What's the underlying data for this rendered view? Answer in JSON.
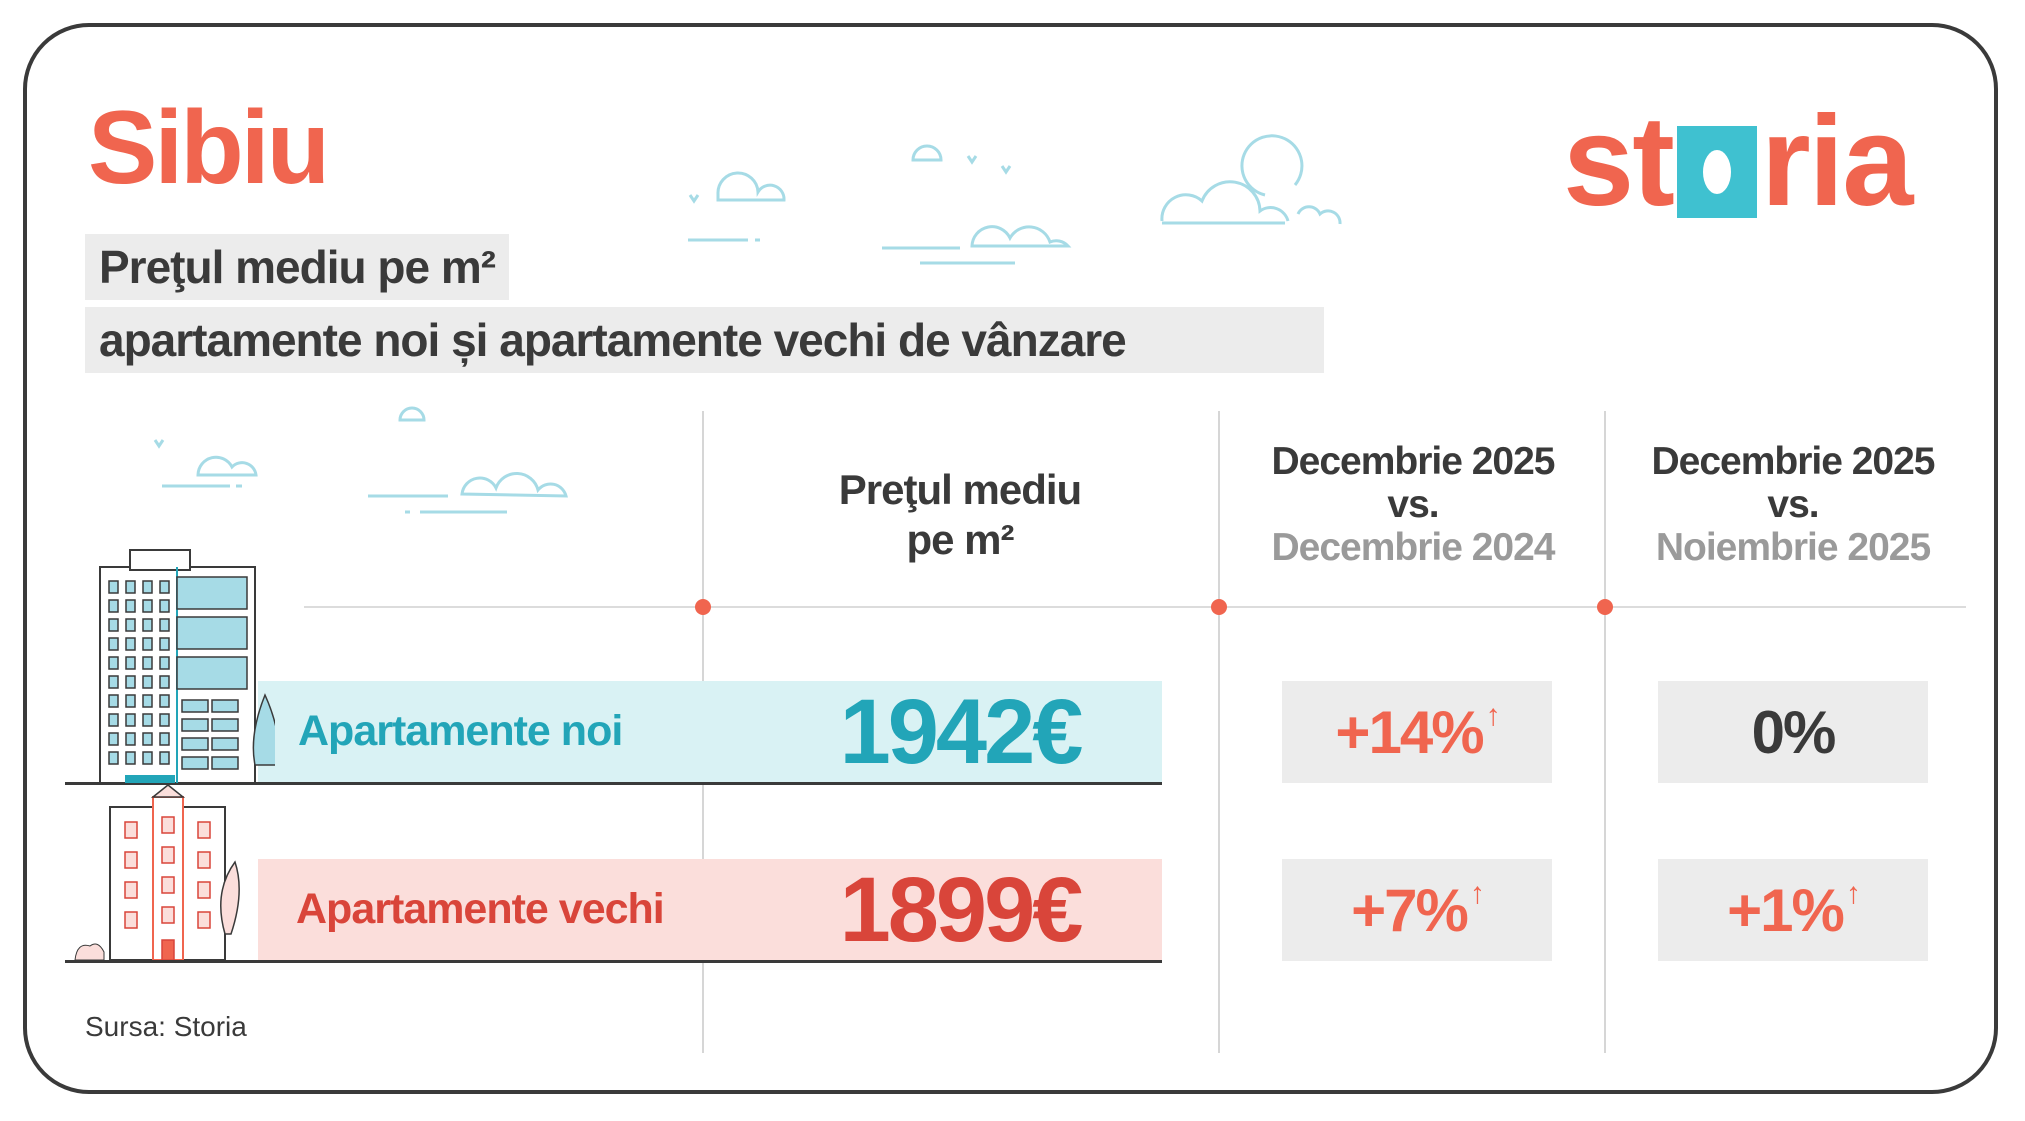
{
  "city": "Sibiu",
  "logo": "storia",
  "subtitle_line1": "Preţul mediu pe m²",
  "subtitle_line2": "apartamente noi și apartamente vechi de vânzare",
  "columns": {
    "price": {
      "line1": "Preţul mediu",
      "line2": "pe m²"
    },
    "yoy": {
      "line1": "Decembrie 2025",
      "line2": "vs.",
      "line3": "Decembrie 2024"
    },
    "mom": {
      "line1": "Decembrie 2025",
      "line2": "vs.",
      "line3": "Noiembrie 2025"
    }
  },
  "rows": [
    {
      "label": "Apartamente noi",
      "price": "1942€",
      "yoy": "+14%",
      "yoy_trend": "up",
      "mom": "0%",
      "mom_trend": "flat"
    },
    {
      "label": "Apartamente vechi",
      "price": "1899€",
      "yoy": "+7%",
      "yoy_trend": "up",
      "mom": "+1%",
      "mom_trend": "up"
    }
  ],
  "arrow_up": "↑",
  "source": "Sursa: Storia",
  "colors": {
    "accent": "#f0654f",
    "teal": "#22a5b8",
    "logo_teal": "#3fc1d0",
    "new_band": "#d9f2f4",
    "old_band": "#fbdedb",
    "old_text": "#d9453a"
  }
}
